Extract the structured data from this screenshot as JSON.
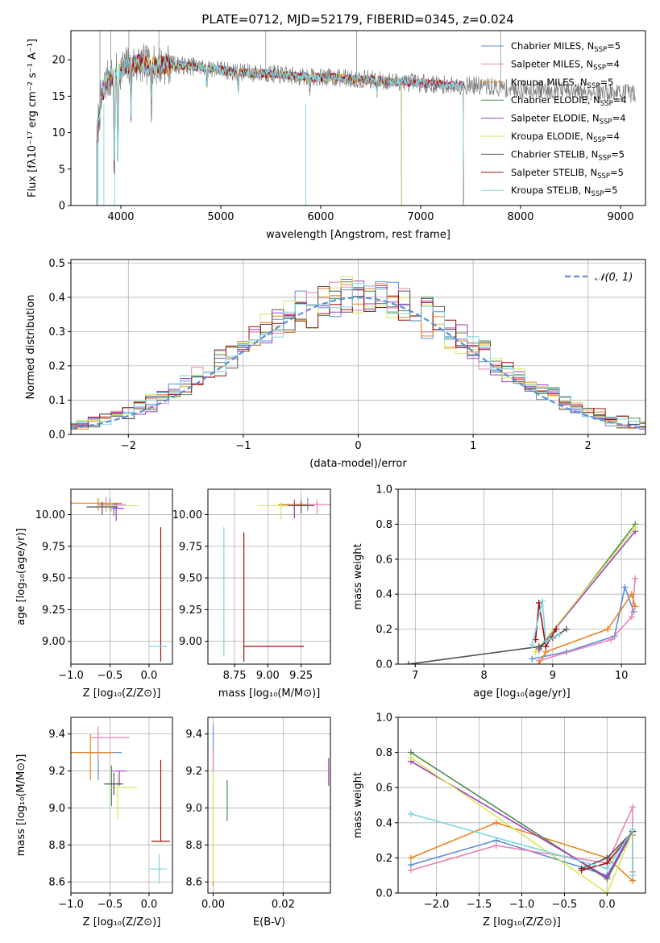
{
  "colors": [
    "#5b8fd9",
    "#ee82b6",
    "#e8831b",
    "#4f8e4f",
    "#a23fc4",
    "#d6e85a",
    "#555555",
    "#a10f0f",
    "#7bd6df"
  ],
  "chart_data": [
    {
      "id": "spectrum",
      "type": "line",
      "title": "PLATE=0712, MJD=52179, FIBERID=0345, z=0.024",
      "xlabel": "wavelength [Angstrom, rest frame]",
      "ylabel": "Flux [fλ10⁻¹⁷ erg cm⁻² s⁻¹ A⁻¹]",
      "xlim": [
        3500,
        9250
      ],
      "ylim": [
        0,
        24
      ],
      "xticks": [
        4000,
        5000,
        6000,
        7000,
        8000,
        9000
      ],
      "yticks": [
        0,
        5,
        10,
        15,
        20
      ],
      "grid": false,
      "legend_placement": "top-right",
      "legend": [
        "Chabrier MILES, N_SSP=5",
        "Salpeter MILES, N_SSP=4",
        "Kroupa MILES, N_SSP=5",
        "Chabrier ELODIE, N_SSP=4",
        "Salpeter ELODIE, N_SSP=4",
        "Kroupa ELODIE, N_SSP=4",
        "Chabrier STELIB, N_SSP=5",
        "Salpeter STELIB, N_SSP=5",
        "Kroupa STELIB, N_SSP=5"
      ],
      "continuum": {
        "x": [
          3760,
          3800,
          3850,
          3900,
          3950,
          4000,
          4100,
          4200,
          4300,
          4400,
          4500,
          4700,
          4900,
          5100,
          5300,
          5500,
          5700,
          5900,
          6100,
          6300,
          6500,
          6700,
          6900,
          7100,
          7300,
          7500,
          7700,
          7900,
          8100,
          8300,
          8500,
          8700,
          8900,
          9100
        ],
        "y": [
          9.0,
          14.5,
          17.0,
          17.5,
          18.0,
          18.8,
          19.3,
          19.5,
          19.0,
          19.3,
          19.4,
          19.1,
          18.9,
          18.4,
          18.2,
          18.1,
          17.8,
          17.6,
          17.6,
          17.4,
          17.3,
          17.0,
          16.9,
          16.7,
          16.5,
          16.5,
          16.3,
          16.0,
          15.9,
          15.9,
          15.7,
          15.6,
          15.5,
          15.4
        ]
      },
      "model_end_wavelengths": [
        7430,
        7430,
        7430,
        6810,
        6810,
        6810,
        9150,
        7430,
        7430
      ],
      "data_end_wavelength": 9150,
      "dips": [
        [
          3935,
          5.0
        ],
        [
          3970,
          6.5
        ],
        [
          4102,
          12.5
        ],
        [
          4305,
          14.0
        ],
        [
          4861,
          16.0
        ],
        [
          5175,
          15.8
        ],
        [
          5890,
          16.2
        ],
        [
          6563,
          15.5
        ],
        [
          8500,
          14.8
        ],
        [
          8545,
          14.8
        ],
        [
          8665,
          14.8
        ]
      ]
    },
    {
      "id": "residuals",
      "type": "histogram",
      "xlabel": "(data-model)/error",
      "ylabel": "Normed distribution",
      "xlim": [
        -2.5,
        2.5
      ],
      "ylim": [
        0,
        0.51
      ],
      "xticks": [
        -2,
        -1,
        0,
        1,
        2
      ],
      "yticks": [
        0.0,
        0.1,
        0.2,
        0.3,
        0.4,
        0.5
      ],
      "grid": true,
      "legend_placement": "top-right",
      "legend": [
        "𝒩(0, 1)"
      ],
      "bin_width": 0.1,
      "reference_curve": "normal(0,1)"
    },
    {
      "id": "age-vs-Z",
      "type": "scatter",
      "xlabel": "Z [log₁₀(Z/Z⊙)]",
      "ylabel": "age  [log₁₀(age/yr)]",
      "xlim": [
        -1.0,
        0.3
      ],
      "ylim": [
        8.82,
        10.2
      ],
      "xticks": [
        -1.0,
        -0.5,
        0.0
      ],
      "yticks": [
        9.0,
        9.25,
        9.5,
        9.75,
        10.0
      ],
      "grid": true,
      "points": [
        {
          "x": -0.5,
          "y": 10.08,
          "xerr": [
            0.15,
            0.15
          ],
          "yerr": [
            0.05,
            0.05
          ]
        },
        {
          "x": -0.55,
          "y": 10.08,
          "xerr": [
            0.1,
            0.25
          ],
          "yerr": [
            0.06,
            0.06
          ]
        },
        {
          "x": -0.65,
          "y": 10.09,
          "xerr": [
            0.35,
            0.3
          ],
          "yerr": [
            0.06,
            0.04
          ]
        },
        {
          "x": -0.45,
          "y": 10.07,
          "xerr": [
            0.1,
            0.1
          ],
          "yerr": [
            0.08,
            0.02
          ]
        },
        {
          "x": -0.42,
          "y": 10.05,
          "xerr": [
            0.05,
            0.1
          ],
          "yerr": [
            0.1,
            0.04
          ]
        },
        {
          "x": -0.48,
          "y": 10.07,
          "xerr": [
            0.15,
            0.35
          ],
          "yerr": [
            0.05,
            0.03
          ]
        },
        {
          "x": -0.6,
          "y": 10.06,
          "xerr": [
            0.2,
            0.2
          ],
          "yerr": [
            0.06,
            0.04
          ]
        },
        {
          "x": 0.15,
          "y": 8.96,
          "xerr": [
            0.0,
            0.0
          ],
          "yerr": [
            0.12,
            0.94
          ]
        },
        {
          "x": 0.13,
          "y": 8.96,
          "xerr": [
            0.13,
            0.1
          ],
          "yerr": [
            0.0,
            0.0
          ]
        }
      ]
    },
    {
      "id": "age-vs-mass",
      "type": "scatter",
      "xlabel": "mass [log₁₀(M/M⊙)]",
      "ylabel": "",
      "xlim": [
        8.55,
        9.47
      ],
      "ylim": [
        8.82,
        10.2
      ],
      "xticks": [
        8.75,
        9.0,
        9.25
      ],
      "yticks": [
        9.0,
        9.25,
        9.5,
        9.75,
        10.0
      ],
      "grid": true,
      "points": [
        {
          "x": 9.3,
          "y": 10.08,
          "xerr": [
            0.08,
            0.08
          ],
          "yerr": [
            0.05,
            0.05
          ]
        },
        {
          "x": 9.37,
          "y": 10.08,
          "xerr": [
            0.1,
            0.1
          ],
          "yerr": [
            0.08,
            0.04
          ]
        },
        {
          "x": 9.2,
          "y": 10.08,
          "xerr": [
            0.12,
            0.1
          ],
          "yerr": [
            0.06,
            0.04
          ]
        },
        {
          "x": 9.2,
          "y": 10.07,
          "xerr": [
            0.12,
            0.12
          ],
          "yerr": [
            0.08,
            0.02
          ]
        },
        {
          "x": 9.2,
          "y": 10.07,
          "xerr": [
            0.1,
            0.05
          ],
          "yerr": [
            0.1,
            0.04
          ]
        },
        {
          "x": 9.1,
          "y": 10.07,
          "xerr": [
            0.18,
            0.1
          ],
          "yerr": [
            0.11,
            0.03
          ]
        },
        {
          "x": 9.25,
          "y": 10.07,
          "xerr": [
            0.1,
            0.1
          ],
          "yerr": [
            0.06,
            0.04
          ]
        },
        {
          "x": 8.82,
          "y": 8.96,
          "xerr": [
            0.0,
            0.45
          ],
          "yerr": [
            0.12,
            0.9
          ]
        },
        {
          "x": 8.67,
          "y": 8.96,
          "xerr": [
            0.0,
            0.0
          ],
          "yerr": [
            0.08,
            0.94
          ]
        }
      ]
    },
    {
      "id": "massweight-vs-age",
      "type": "line",
      "xlabel": "age  [log₁₀(age/yr)]",
      "ylabel": "mass weight",
      "xlim": [
        6.75,
        10.35
      ],
      "ylim": [
        0,
        1.0
      ],
      "xticks": [
        7,
        8,
        9,
        10
      ],
      "yticks": [
        0.0,
        0.2,
        0.4,
        0.6,
        0.8,
        1.0
      ],
      "grid": true,
      "series": [
        {
          "x": [
            8.7,
            9.2,
            9.9,
            10.05,
            10.18
          ],
          "y": [
            0.03,
            0.07,
            0.16,
            0.44,
            0.3
          ]
        },
        {
          "x": [
            8.8,
            9.85,
            10.15,
            10.2
          ],
          "y": [
            0.02,
            0.14,
            0.27,
            0.49
          ]
        },
        {
          "x": [
            8.8,
            8.9,
            9.8,
            10.15,
            10.2
          ],
          "y": [
            0.0,
            0.07,
            0.2,
            0.4,
            0.33
          ]
        },
        {
          "x": [
            8.8,
            10.2
          ],
          "y": [
            0.08,
            0.8
          ]
        },
        {
          "x": [
            8.8,
            10.2
          ],
          "y": [
            0.09,
            0.76
          ]
        },
        {
          "x": [
            8.75,
            10.2
          ],
          "y": [
            0.07,
            0.78
          ]
        },
        {
          "x": [
            6.9,
            8.8,
            9.0,
            9.2
          ],
          "y": [
            0.0,
            0.1,
            0.15,
            0.2
          ]
        },
        {
          "x": [
            8.75,
            8.8,
            8.9,
            9.05
          ],
          "y": [
            0.14,
            0.35,
            0.1,
            0.2
          ]
        },
        {
          "x": [
            8.7,
            8.85,
            8.9,
            9.1
          ],
          "y": [
            0.11,
            0.36,
            0.13,
            0.17
          ]
        }
      ]
    },
    {
      "id": "mass-vs-Z",
      "type": "scatter",
      "xlabel": "Z [log₁₀(Z/Z⊙)]",
      "ylabel": "mass [log₁₀(M/M⊙)]",
      "xlim": [
        -1.0,
        0.3
      ],
      "ylim": [
        8.54,
        9.49
      ],
      "xticks": [
        -1.0,
        -0.5,
        0.0
      ],
      "yticks": [
        8.6,
        8.8,
        9.0,
        9.2,
        9.4
      ],
      "grid": true,
      "points": [
        {
          "x": -0.65,
          "y": 9.3,
          "xerr": [
            0.15,
            0.3
          ],
          "yerr": [
            0.15,
            0.05
          ]
        },
        {
          "x": -0.65,
          "y": 9.38,
          "xerr": [
            0.1,
            0.4
          ],
          "yerr": [
            0.12,
            0.06
          ]
        },
        {
          "x": -0.75,
          "y": 9.3,
          "xerr": [
            0.25,
            0.3
          ],
          "yerr": [
            0.15,
            0.1
          ]
        },
        {
          "x": -0.48,
          "y": 9.13,
          "xerr": [
            0.1,
            0.15
          ],
          "yerr": [
            0.12,
            0.1
          ]
        },
        {
          "x": -0.38,
          "y": 9.2,
          "xerr": [
            0.1,
            0.1
          ],
          "yerr": [
            0.08,
            0.0
          ]
        },
        {
          "x": -0.4,
          "y": 9.11,
          "xerr": [
            0.1,
            0.25
          ],
          "yerr": [
            0.17,
            0.07
          ]
        },
        {
          "x": -0.45,
          "y": 9.13,
          "xerr": [
            0.1,
            0.1
          ],
          "yerr": [
            0.06,
            0.06
          ]
        },
        {
          "x": 0.15,
          "y": 8.82,
          "xerr": [
            0.12,
            0.12
          ],
          "yerr": [
            0.0,
            0.44
          ]
        },
        {
          "x": 0.13,
          "y": 8.67,
          "xerr": [
            0.13,
            0.1
          ],
          "yerr": [
            0.08,
            0.08
          ]
        }
      ]
    },
    {
      "id": "mass-vs-EBV",
      "type": "scatter",
      "xlabel": "E(B-V)",
      "ylabel": "",
      "xlim": [
        -0.0015,
        0.0335
      ],
      "ylim": [
        8.54,
        9.49
      ],
      "xticks": [
        0.0,
        0.02
      ],
      "yticks": [
        8.6,
        8.8,
        9.0,
        9.2,
        9.4
      ],
      "grid": true,
      "points": [
        {
          "x": 0.0,
          "y": 9.33,
          "xerr": [
            0,
            0
          ],
          "yerr": [
            0.15,
            0.12
          ]
        },
        {
          "x": 0.0,
          "y": 9.25,
          "xerr": [
            0,
            0
          ],
          "yerr": [
            0.08,
            0.07
          ]
        },
        {
          "x": 0.0,
          "y": 8.7,
          "xerr": [
            0,
            0
          ],
          "yerr": [
            0.12,
            0.45
          ]
        },
        {
          "x": 0.004,
          "y": 9.05,
          "xerr": [
            0,
            0
          ],
          "yerr": [
            0.12,
            0.1
          ]
        },
        {
          "x": 0.033,
          "y": 9.2,
          "xerr": [
            0,
            0
          ],
          "yerr": [
            0.08,
            0.07
          ]
        },
        {
          "x": 0.0,
          "y": 8.9,
          "xerr": [
            0,
            0
          ],
          "yerr": [
            0.3,
            0.3
          ]
        }
      ]
    },
    {
      "id": "massweight-vs-Z",
      "type": "line",
      "xlabel": "Z [log₁₀(Z/Z⊙)]",
      "ylabel": "mass weight",
      "xlim": [
        -2.45,
        0.45
      ],
      "ylim": [
        0,
        1.0
      ],
      "xticks": [
        -2.0,
        -1.5,
        -1.0,
        -0.5,
        0.0
      ],
      "yticks": [
        0.0,
        0.2,
        0.4,
        0.6,
        0.8,
        1.0
      ],
      "grid": true,
      "series": [
        {
          "x": [
            -2.3,
            -1.3,
            0.0,
            0.3
          ],
          "y": [
            0.16,
            0.3,
            0.1,
            0.36
          ]
        },
        {
          "x": [
            -2.3,
            -1.3,
            0.0,
            0.3,
            0.3
          ],
          "y": [
            0.13,
            0.27,
            0.17,
            0.49,
            0.12
          ]
        },
        {
          "x": [
            -2.3,
            -1.3,
            0.0,
            0.3,
            0.3
          ],
          "y": [
            0.2,
            0.4,
            0.2,
            0.07,
            0.33
          ]
        },
        {
          "x": [
            -2.3,
            0.0,
            0.3
          ],
          "y": [
            0.8,
            0.08,
            0.35
          ]
        },
        {
          "x": [
            -2.3,
            0.0,
            0.3
          ],
          "y": [
            0.75,
            0.09,
            0.35
          ]
        },
        {
          "x": [
            -2.3,
            0.0,
            0.3
          ],
          "y": [
            0.77,
            0.0,
            0.35
          ]
        },
        {
          "x": [
            -0.3,
            0.0,
            0.3
          ],
          "y": [
            0.14,
            0.2,
            0.35
          ]
        },
        {
          "x": [
            -0.3,
            0.0,
            0.3
          ],
          "y": [
            0.13,
            0.17,
            0.35
          ]
        },
        {
          "x": [
            -2.3,
            0.0,
            0.3,
            0.3
          ],
          "y": [
            0.45,
            0.14,
            0.36,
            0.1
          ]
        }
      ]
    }
  ]
}
